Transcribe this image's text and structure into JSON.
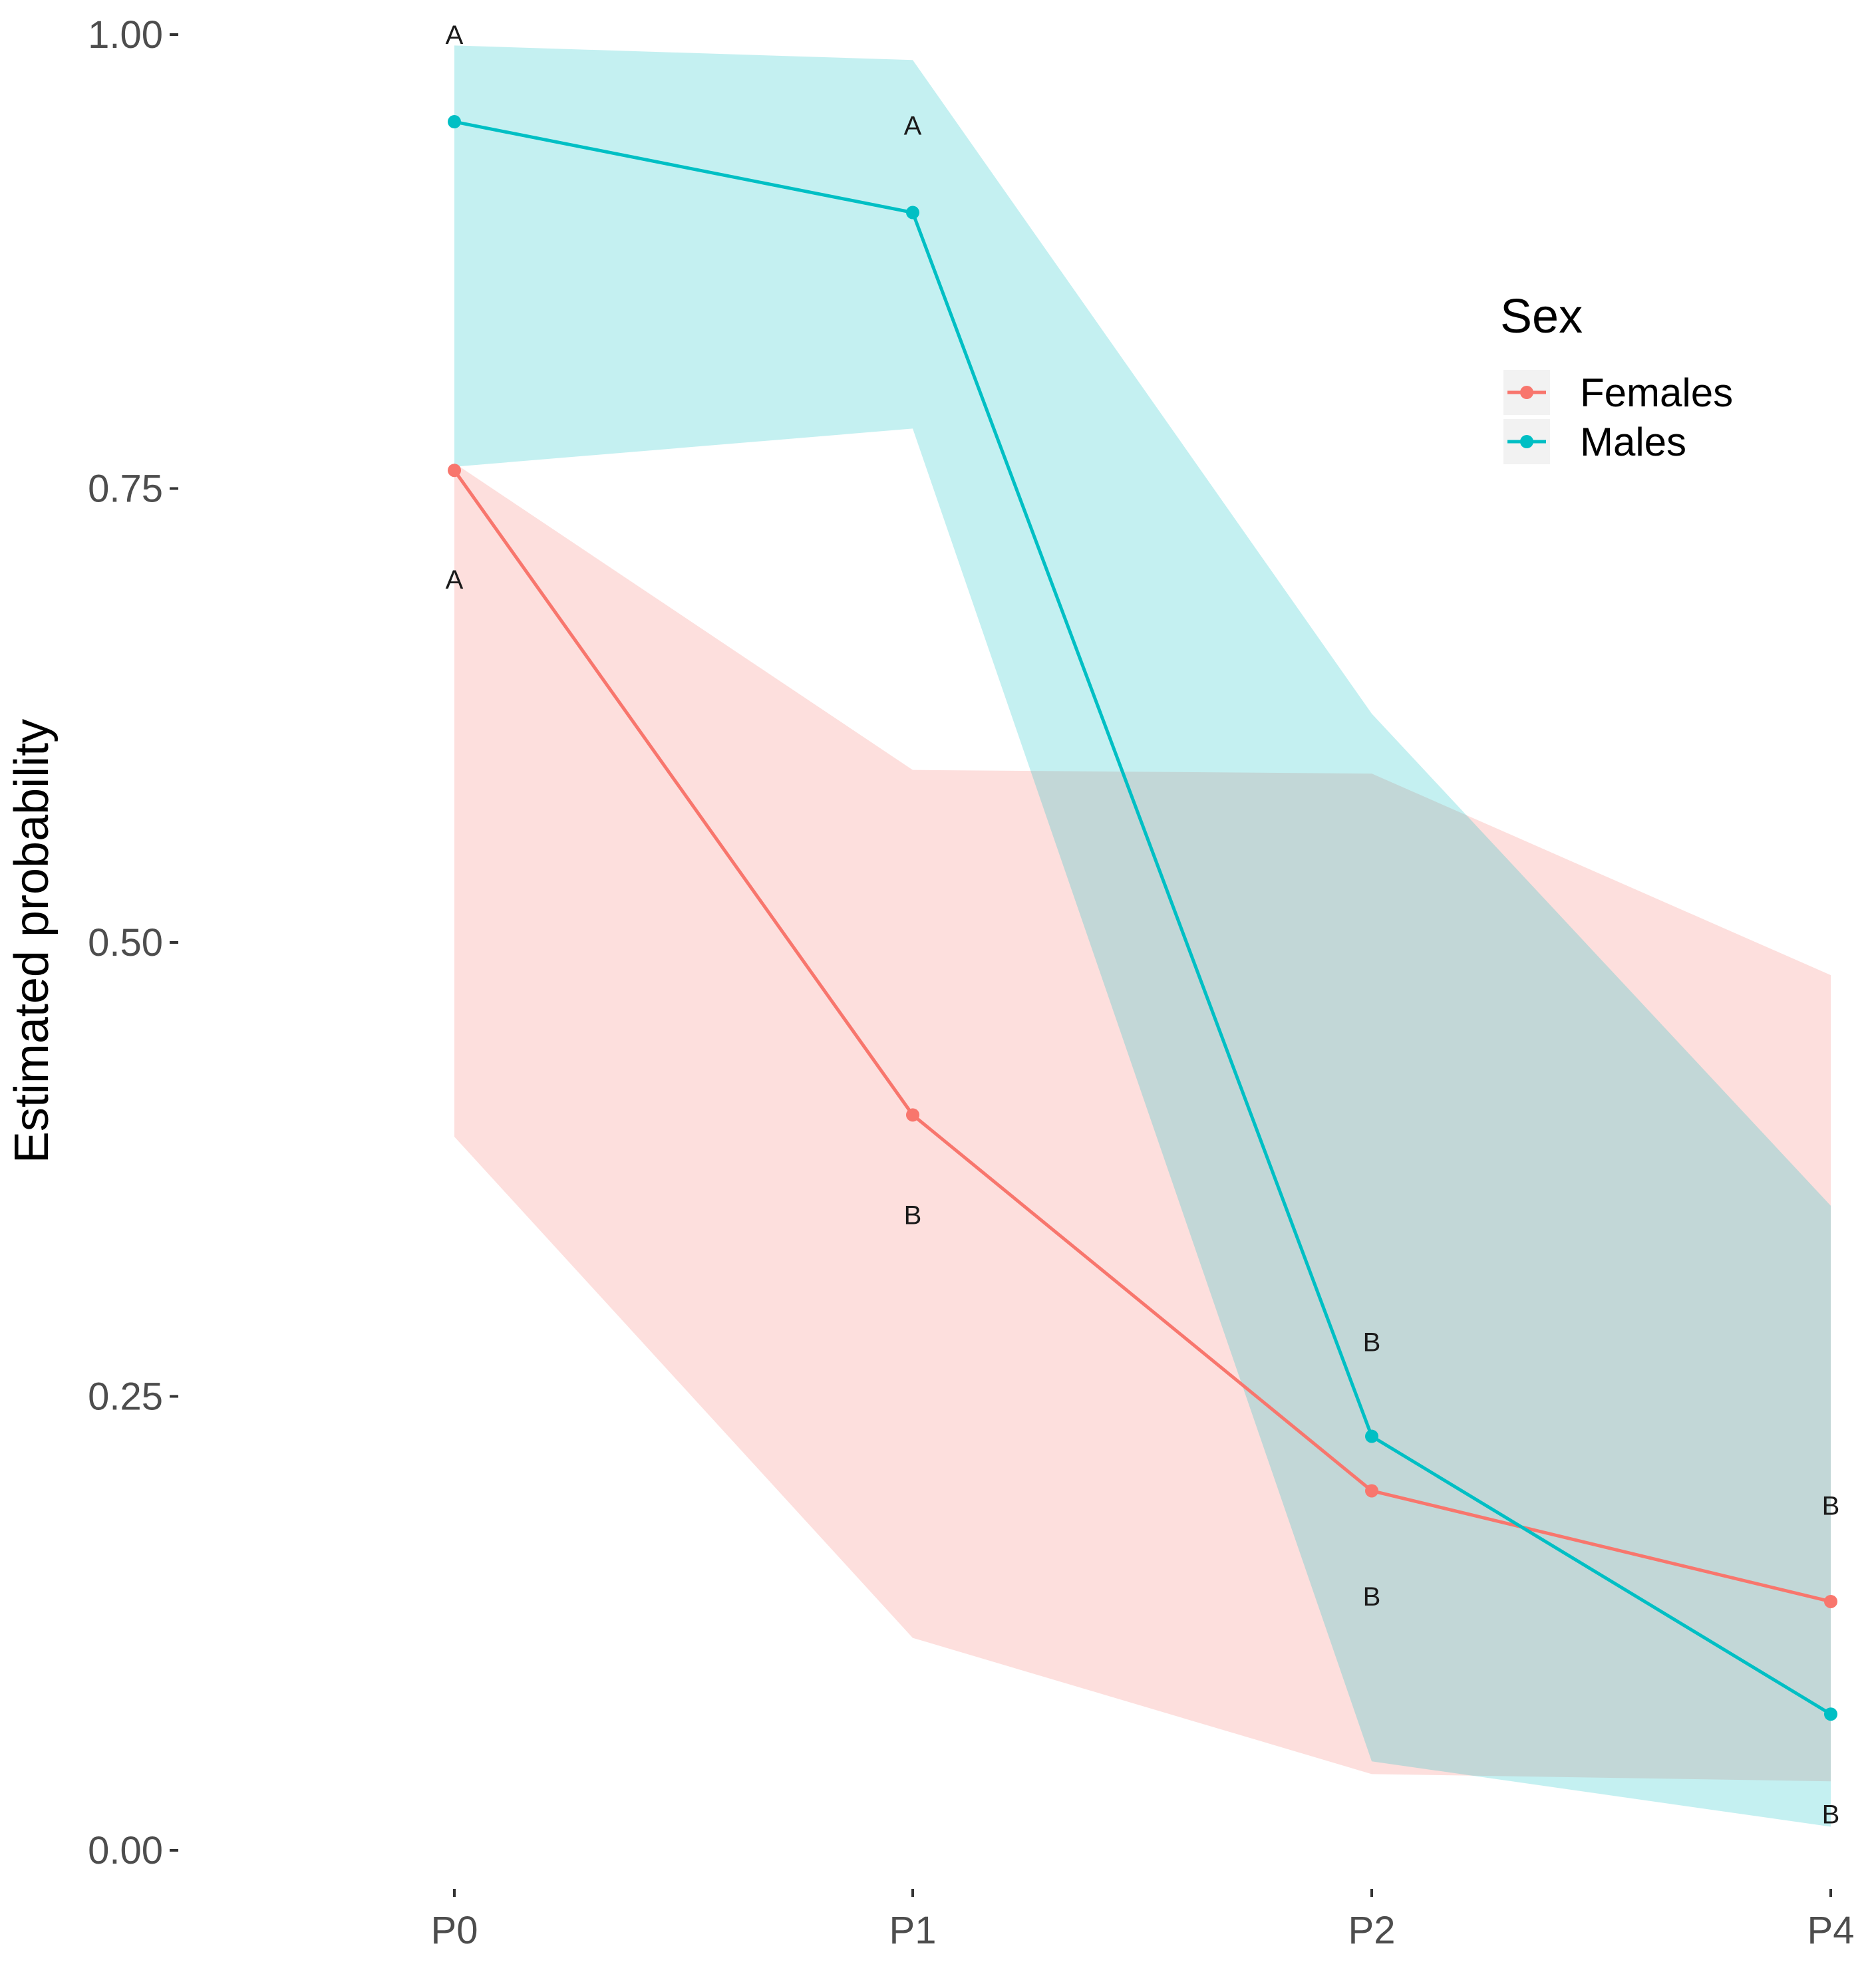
{
  "chart_data": {
    "type": "line",
    "title": "",
    "xlabel": "",
    "ylabel": "Estimated probability",
    "ylim": [
      0,
      1
    ],
    "yticks": [
      "0.00",
      "0.25",
      "0.50",
      "0.75",
      "1.00"
    ],
    "ytick_values": [
      0,
      0.25,
      0.5,
      0.75,
      1.0
    ],
    "categories": [
      "P0",
      "P1",
      "P2",
      "P4"
    ],
    "grid": false,
    "legend": {
      "title": "Sex",
      "position": "right"
    },
    "series": [
      {
        "name": "Females",
        "color": "#F8766D",
        "ribbon_color": "#F8766D",
        "values": [
          0.76,
          0.405,
          0.198,
          0.137
        ],
        "lower": [
          0.393,
          0.117,
          0.042,
          0.038
        ],
        "upper": [
          0.764,
          0.595,
          0.593,
          0.482
        ],
        "annotations": [
          {
            "label": "A",
            "y": 0.7
          },
          {
            "label": "B",
            "y": 0.35
          },
          {
            "label": "B",
            "y": 0.14
          },
          {
            "label": "B",
            "y": 0.19
          }
        ]
      },
      {
        "name": "Males",
        "color": "#00BFC4",
        "ribbon_color": "#00BFC4",
        "values": [
          0.952,
          0.902,
          0.228,
          0.075
        ],
        "lower": [
          0.762,
          0.783,
          0.049,
          0.013
        ],
        "upper": [
          0.994,
          0.986,
          0.626,
          0.355
        ],
        "annotations": [
          {
            "label": "A",
            "y": 1.0
          },
          {
            "label": "A",
            "y": 0.95
          },
          {
            "label": "B",
            "y": 0.28
          },
          {
            "label": "B",
            "y": 0.02
          }
        ]
      }
    ]
  }
}
